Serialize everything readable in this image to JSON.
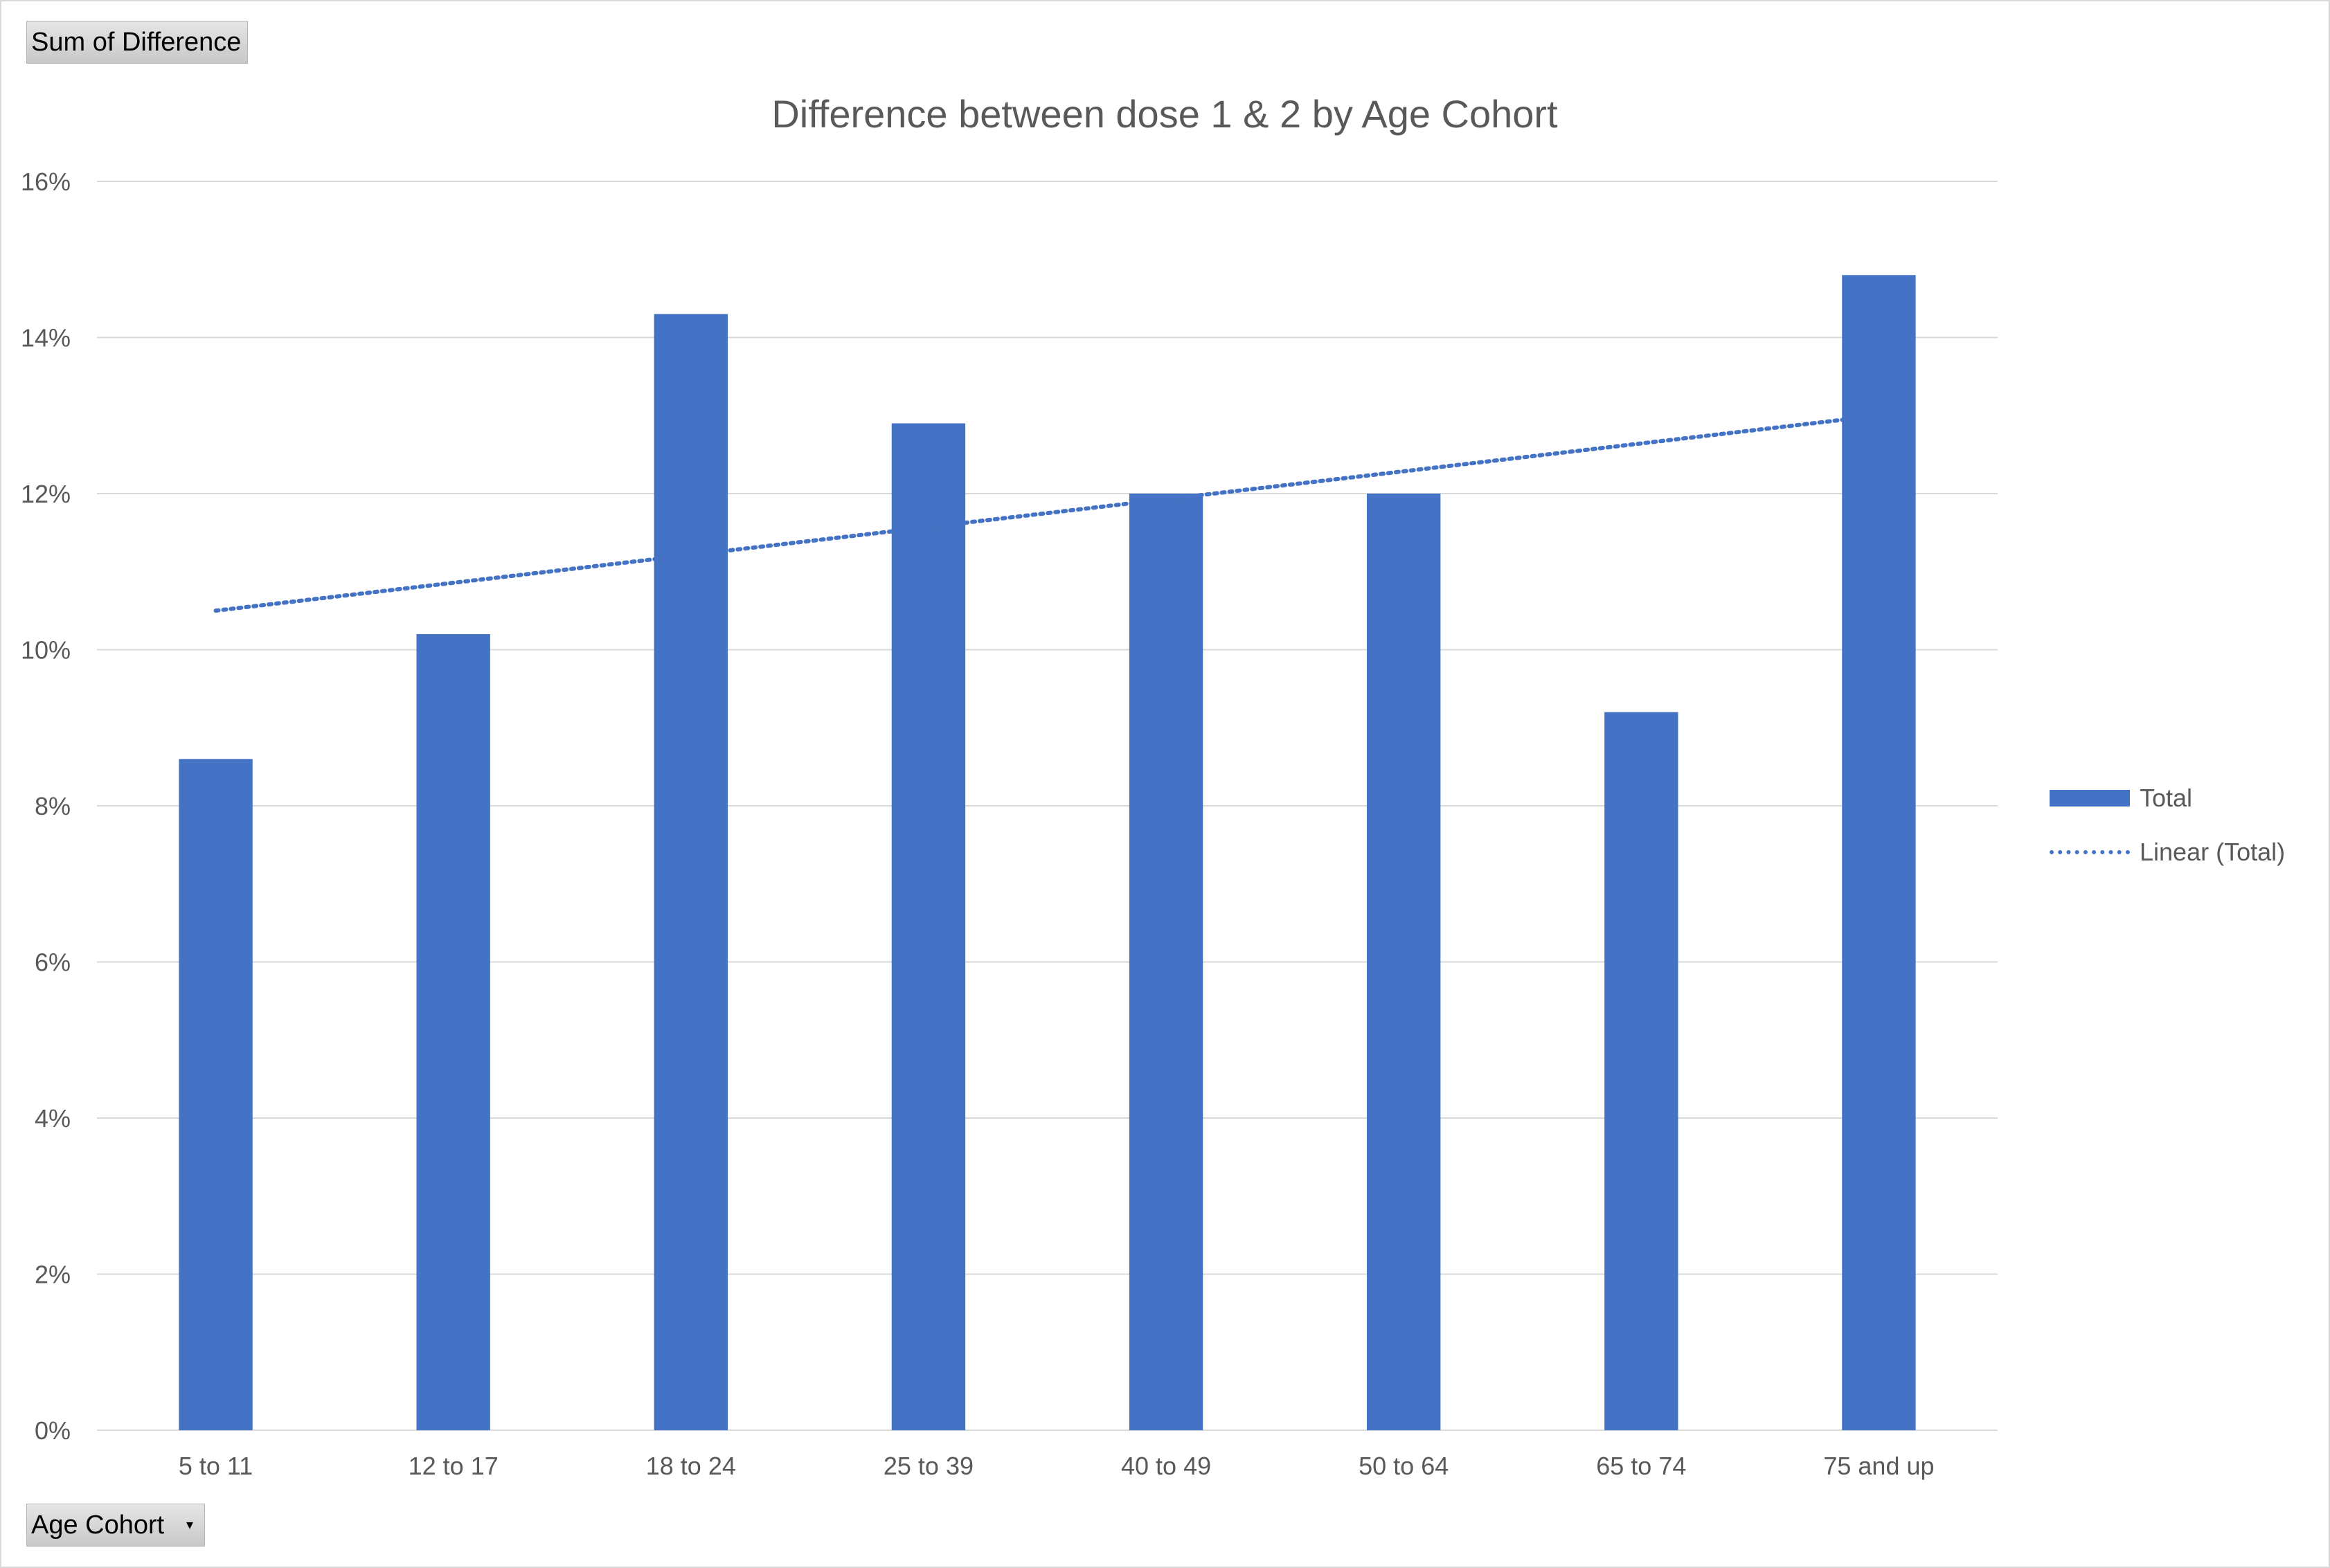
{
  "pivot": {
    "value_field": "Sum of Difference",
    "axis_field": "Age Cohort"
  },
  "legend": {
    "bar_label": "Total",
    "trend_label": "Linear (Total)"
  },
  "colors": {
    "bar": "#4472c4",
    "grid": "#d9d9d9",
    "text": "#595959"
  },
  "chart_data": {
    "type": "bar",
    "title": "Difference between dose 1 & 2 by Age Cohort",
    "xlabel": "",
    "ylabel": "",
    "categories": [
      "5 to 11",
      "12 to 17",
      "18 to 24",
      "25 to 39",
      "40 to 49",
      "50 to 64",
      "65 to 74",
      "75 and up"
    ],
    "series": [
      {
        "name": "Total",
        "values": [
          0.086,
          0.102,
          0.143,
          0.129,
          0.12,
          0.12,
          0.092,
          0.148
        ]
      }
    ],
    "trendline": {
      "name": "Linear (Total)",
      "type": "linear",
      "start": 0.105,
      "end": 0.13
    },
    "ylim": [
      0,
      0.16
    ],
    "yticks": [
      "0%",
      "2%",
      "4%",
      "6%",
      "8%",
      "10%",
      "12%",
      "14%",
      "16%"
    ],
    "grid": true,
    "legend_position": "right"
  }
}
